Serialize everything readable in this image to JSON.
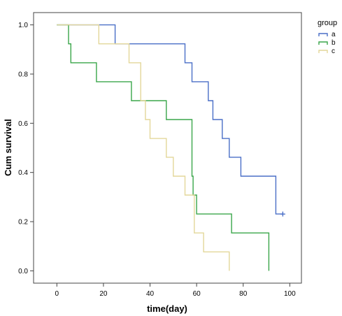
{
  "chart_data": {
    "type": "line",
    "xlabel": "time(day)",
    "ylabel": "Cum survival",
    "xlim": [
      -10,
      105
    ],
    "ylim": [
      -0.05,
      1.05
    ],
    "x_ticks": [
      0,
      20,
      40,
      60,
      80,
      100
    ],
    "x_tick_labels": [
      "0",
      "20",
      "40",
      "60",
      "80",
      "100"
    ],
    "y_ticks": [
      0.0,
      0.2,
      0.4,
      0.6,
      0.8,
      1.0
    ],
    "y_tick_labels": [
      "0.0",
      "0.2",
      "0.4",
      "0.6",
      "0.8",
      "1.0"
    ],
    "grid": false,
    "legend": {
      "title": "group",
      "position": "right"
    },
    "series": [
      {
        "name": "a",
        "color": "#4a6fc7",
        "step_x": [
          0,
          25,
          25,
          55,
          55,
          58,
          58,
          65,
          65,
          67,
          67,
          71,
          71,
          74,
          74,
          79,
          79,
          94,
          94,
          97
        ],
        "step_y": [
          1.0,
          1.0,
          0.923,
          0.923,
          0.846,
          0.846,
          0.769,
          0.769,
          0.692,
          0.692,
          0.615,
          0.615,
          0.538,
          0.538,
          0.462,
          0.462,
          0.385,
          0.385,
          0.231,
          0.231
        ],
        "censored": [
          [
            97,
            0.231
          ]
        ]
      },
      {
        "name": "b",
        "color": "#3aa64a",
        "step_x": [
          0,
          5,
          5,
          6,
          6,
          17,
          17,
          32,
          32,
          47,
          47,
          58,
          58,
          58.5,
          58.5,
          60,
          60,
          75,
          75,
          91,
          91
        ],
        "step_y": [
          1.0,
          1.0,
          0.923,
          0.923,
          0.846,
          0.846,
          0.769,
          0.769,
          0.692,
          0.692,
          0.615,
          0.615,
          0.385,
          0.385,
          0.308,
          0.308,
          0.231,
          0.231,
          0.154,
          0.154,
          0.0
        ]
      },
      {
        "name": "c",
        "color": "#e3d79a",
        "step_x": [
          0,
          18,
          18,
          31,
          31,
          36,
          36,
          38,
          38,
          40,
          40,
          47,
          47,
          50,
          50,
          55,
          55,
          59,
          59,
          63,
          63,
          69,
          69,
          74,
          74
        ],
        "step_y": [
          1.0,
          1.0,
          0.923,
          0.923,
          0.846,
          0.846,
          0.692,
          0.692,
          0.615,
          0.615,
          0.538,
          0.538,
          0.462,
          0.462,
          0.385,
          0.385,
          0.308,
          0.308,
          0.154,
          0.154,
          0.077,
          0.077,
          0.077,
          0.077,
          0.0
        ]
      }
    ]
  }
}
